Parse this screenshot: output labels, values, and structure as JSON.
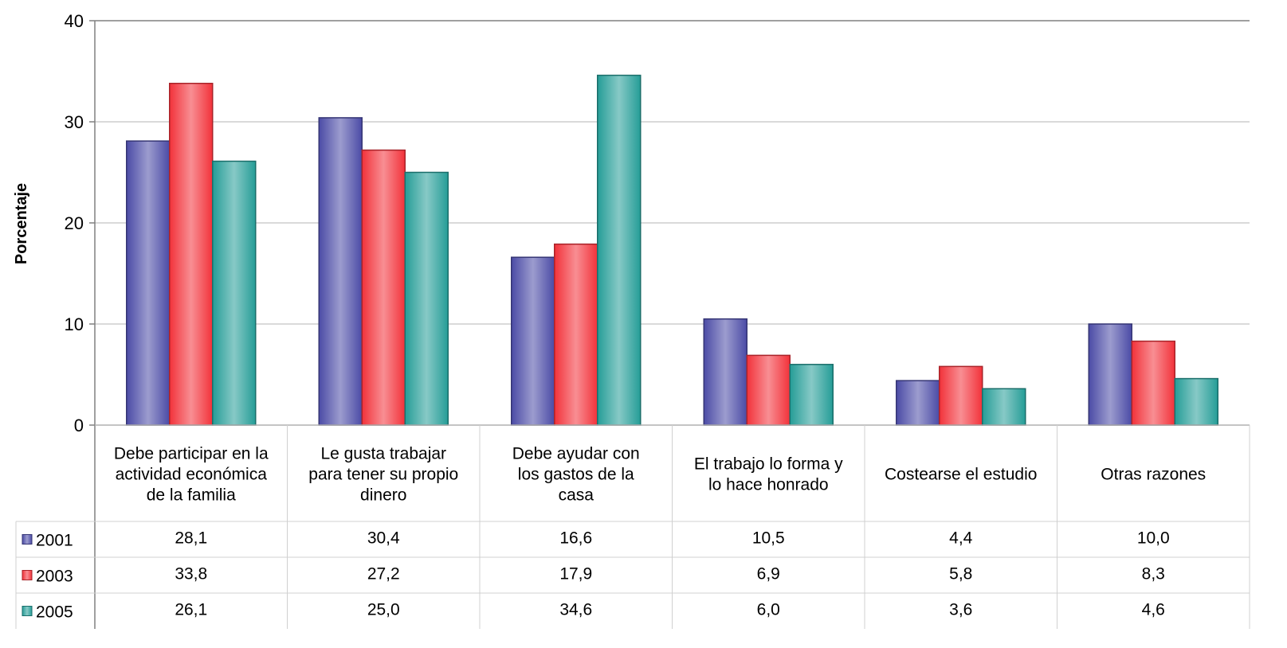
{
  "chart_data": {
    "type": "bar",
    "title": "",
    "xlabel": "",
    "ylabel": "Porcentaje",
    "ylim": [
      0,
      40
    ],
    "yticks": [
      "0",
      "10",
      "20",
      "30",
      "40"
    ],
    "grid": true,
    "legend": "data-table-left",
    "categories": [
      "Debe participar en la actividad económica de la familia",
      "Le gusta trabajar para tener su propio dinero",
      "Debe ayudar con los gastos de la casa",
      "El trabajo lo forma y lo hace honrado",
      "Costearse el estudio",
      "Otras razones"
    ],
    "category_lines": [
      [
        "Debe participar en la",
        "actividad económica",
        "de la familia"
      ],
      [
        "Le gusta trabajar",
        "para tener su propio",
        "dinero"
      ],
      [
        "Debe ayudar con",
        "los gastos de la",
        "casa"
      ],
      [
        "El trabajo lo forma y",
        "lo hace honrado"
      ],
      [
        "Costearse el estudio"
      ],
      [
        "Otras razones"
      ]
    ],
    "series": [
      {
        "name": "2001",
        "color": "#4b4ba6",
        "values": [
          28.1,
          30.4,
          16.6,
          10.5,
          4.4,
          10.0
        ],
        "labels": [
          "28,1",
          "30,4",
          "16,6",
          "10,5",
          "4,4",
          "10,0"
        ]
      },
      {
        "name": "2003",
        "color": "#f2323a",
        "values": [
          33.8,
          27.2,
          17.9,
          6.9,
          5.8,
          8.3
        ],
        "labels": [
          "33,8",
          "27,2",
          "17,9",
          "6,9",
          "5,8",
          "8,3"
        ]
      },
      {
        "name": "2005",
        "color": "#259d97",
        "values": [
          26.1,
          25.0,
          34.6,
          6.0,
          3.6,
          4.6
        ],
        "labels": [
          "26,1",
          "25,0",
          "34,6",
          "6,0",
          "3,6",
          "4,6"
        ]
      }
    ]
  }
}
